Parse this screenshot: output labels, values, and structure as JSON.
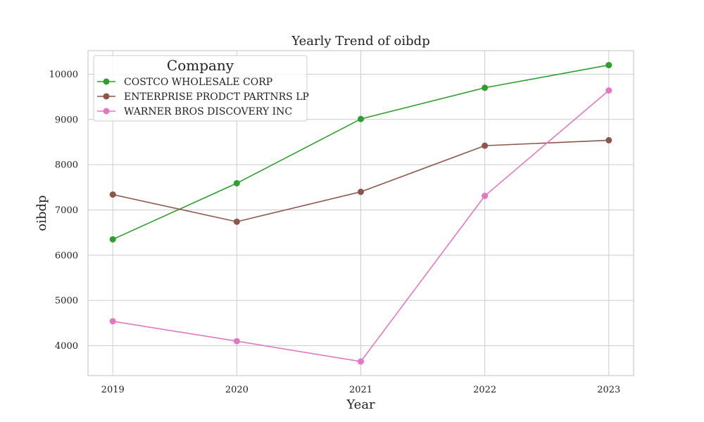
{
  "chart_data": {
    "type": "line",
    "title": "Yearly Trend of oibdp",
    "xlabel": "Year",
    "ylabel": "oibdp",
    "x": [
      2019,
      2020,
      2021,
      2022,
      2023
    ],
    "x_tick_labels": [
      "2019",
      "2020",
      "2021",
      "2022",
      "2023"
    ],
    "y_ticks": [
      4000,
      5000,
      6000,
      7000,
      8000,
      9000,
      10000
    ],
    "y_tick_labels": [
      "4000",
      "5000",
      "6000",
      "7000",
      "8000",
      "9000",
      "10000"
    ],
    "xlim": [
      2018.8,
      2023.2
    ],
    "ylim": [
      3340,
      10520
    ],
    "grid": true,
    "legend": {
      "title": "Company",
      "placement": "upper-left"
    },
    "series": [
      {
        "name": "COSTCO WHOLESALE CORP",
        "color": "#2ca02c",
        "values": [
          6350,
          7590,
          9010,
          9700,
          10200
        ]
      },
      {
        "name": "ENTERPRISE PRODCT PARTNRS LP",
        "color": "#8c564b",
        "values": [
          7340,
          6740,
          7400,
          8420,
          8540
        ]
      },
      {
        "name": "WARNER BROS DISCOVERY INC",
        "color": "#e377c2",
        "values": [
          4540,
          4100,
          3650,
          7310,
          9640
        ]
      }
    ]
  }
}
